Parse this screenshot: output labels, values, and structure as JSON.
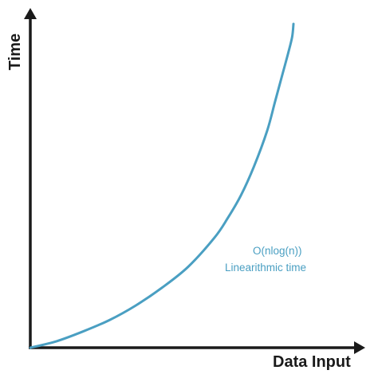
{
  "chart_data": {
    "type": "line",
    "title": "",
    "xlabel": "Data Input",
    "ylabel": "Time",
    "grid": false,
    "ticks": false,
    "xlim": [
      0,
      100
    ],
    "ylim": [
      0,
      100
    ],
    "series": [
      {
        "color": "#4a9fc2",
        "x": [
          0,
          10,
          20,
          30,
          40,
          50,
          60,
          70,
          75,
          80,
          85,
          90,
          93,
          96,
          98,
          99.5,
          100
        ],
        "y": [
          0,
          2,
          5,
          8.5,
          13,
          18.5,
          25,
          34,
          40,
          47,
          56,
          67,
          76,
          85,
          91,
          96,
          100
        ]
      }
    ],
    "annotations": [
      {
        "text": "O(nlog(n))"
      },
      {
        "text": "Linearithmic time"
      }
    ],
    "axis_color": "#1a1a1a"
  }
}
